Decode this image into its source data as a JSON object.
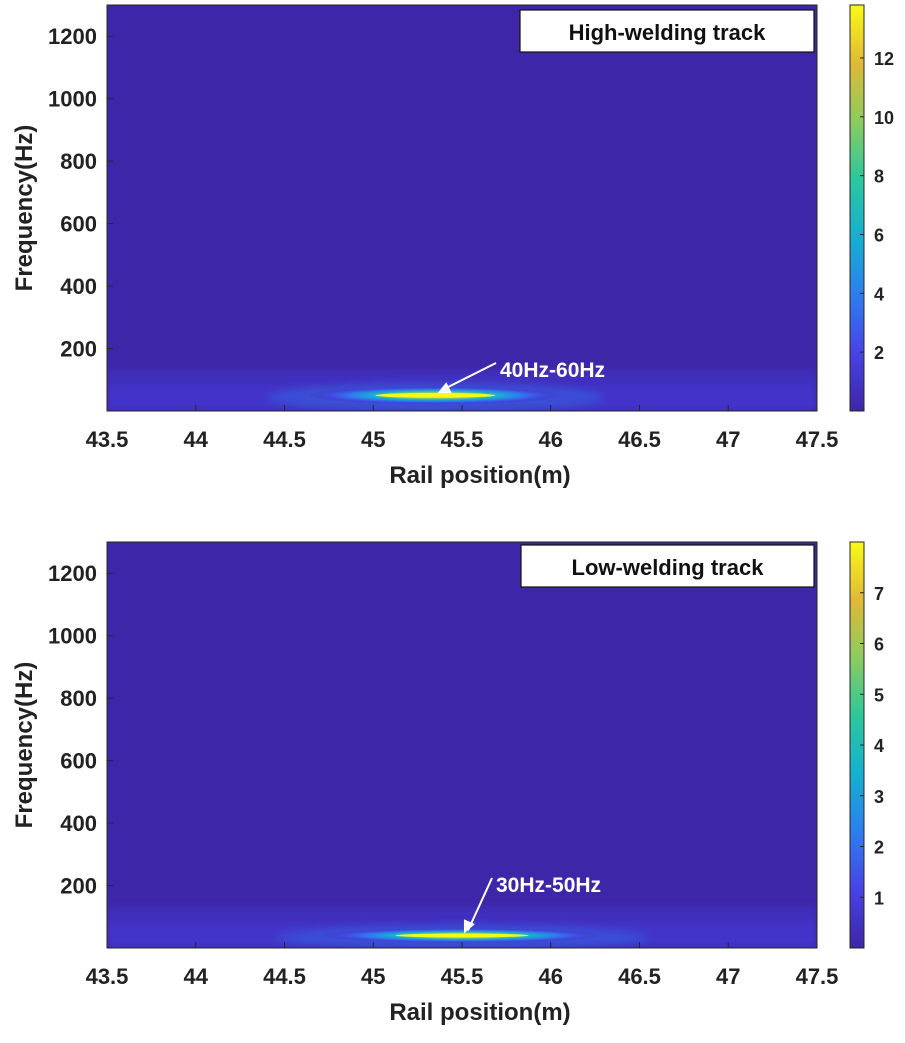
{
  "chart_data": [
    {
      "type": "heatmap",
      "label": "High-welding track",
      "xlabel": "Rail position(m)",
      "ylabel": "Frequency(Hz)",
      "xlim": [
        43.5,
        47.5
      ],
      "ylim": [
        0,
        1300
      ],
      "xticks": [
        "43.5",
        "44",
        "44.5",
        "45",
        "45.5",
        "46",
        "46.5",
        "47",
        "47.5"
      ],
      "yticks": [
        "200",
        "400",
        "600",
        "800",
        "1000",
        "1200"
      ],
      "colorbar": {
        "min": 0,
        "max": 13.8,
        "ticks": [
          "2",
          "4",
          "6",
          "8",
          "10",
          "12"
        ]
      },
      "colormap": [
        "#3e26a8",
        "#4743e6",
        "#2d7eef",
        "#15b0d0",
        "#2cc79d",
        "#8bcc5e",
        "#e0b935",
        "#f9fb15"
      ],
      "peak": {
        "x": 45.35,
        "y": 50,
        "value": 13.8,
        "x_spread": 0.45,
        "y_spread": 22
      },
      "annotation": {
        "text": "40Hz-60Hz",
        "x": 45.35,
        "y": 50
      }
    },
    {
      "type": "heatmap",
      "label": "Low-welding track",
      "xlabel": "Rail position(m)",
      "ylabel": "Frequency(Hz)",
      "xlim": [
        43.5,
        47.5
      ],
      "ylim": [
        0,
        1300
      ],
      "xticks": [
        "43.5",
        "44",
        "44.5",
        "45",
        "45.5",
        "46",
        "46.5",
        "47",
        "47.5"
      ],
      "yticks": [
        "200",
        "400",
        "600",
        "800",
        "1000",
        "1200"
      ],
      "colorbar": {
        "min": 0,
        "max": 8,
        "ticks": [
          "1",
          "2",
          "3",
          "4",
          "5",
          "6",
          "7"
        ]
      },
      "colormap": [
        "#3e26a8",
        "#4743e6",
        "#2d7eef",
        "#15b0d0",
        "#2cc79d",
        "#8bcc5e",
        "#e0b935",
        "#f9fb15"
      ],
      "peak": {
        "x": 45.5,
        "y": 40,
        "value": 8,
        "x_spread": 0.5,
        "y_spread": 18
      },
      "annotation": {
        "text": "30Hz-50Hz",
        "x": 45.5,
        "y": 40
      }
    }
  ]
}
